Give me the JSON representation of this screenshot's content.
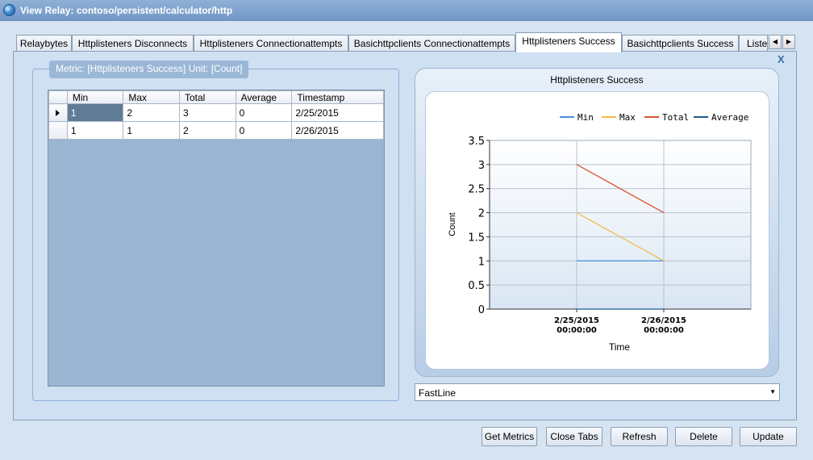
{
  "window": {
    "title": "View Relay: contoso/persistent/calculator/http"
  },
  "tabs": [
    "Relaybytes",
    "Httplisteners Disconnects",
    "Httplisteners Connectionattempts",
    "Basichttpclients Connectionattempts",
    "Httplisteners Success",
    "Basichttpclients Success",
    "Liste"
  ],
  "active_tab": "Httplisteners Success",
  "close_label": "X",
  "metric": {
    "legend": "Metric: [Httplisteners Success] Unit: [Count]"
  },
  "grid": {
    "columns": [
      "Min",
      "Max",
      "Total",
      "Average",
      "Timestamp"
    ],
    "rows": [
      [
        "1",
        "2",
        "3",
        "0",
        "2/25/2015"
      ],
      [
        "1",
        "1",
        "2",
        "0",
        "2/26/2015"
      ]
    ]
  },
  "chart_title": "Httplisteners Success",
  "chart_data": {
    "type": "line",
    "x": [
      "2/25/2015 00:00:00",
      "2/26/2015 00:00:00"
    ],
    "series": [
      {
        "name": "Min",
        "values": [
          1,
          1
        ],
        "color": "#4a90d9"
      },
      {
        "name": "Max",
        "values": [
          2,
          1
        ],
        "color": "#f2b84b"
      },
      {
        "name": "Total",
        "values": [
          3,
          2
        ],
        "color": "#d9532c"
      },
      {
        "name": "Average",
        "values": [
          0,
          0
        ],
        "color": "#1c5a8c"
      }
    ],
    "xlabel": "Time",
    "ylabel": "Count",
    "ylim": [
      0,
      3.5
    ],
    "yticks": [
      "0",
      "0.5",
      "1",
      "1.5",
      "2",
      "2.5",
      "3",
      "3.5"
    ],
    "grid": true,
    "legend": "top"
  },
  "chart_type_select": {
    "value": "FastLine"
  },
  "buttons": {
    "get_metrics": "Get Metrics",
    "close_tabs": "Close Tabs",
    "refresh": "Refresh",
    "delete": "Delete",
    "update": "Update"
  }
}
